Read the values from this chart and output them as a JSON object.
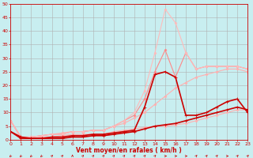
{
  "bg_color": "#c8eef0",
  "grid_color": "#b0b0b0",
  "xlabel": "Vent moyen/en rafales ( km/h )",
  "xlabel_color": "#cc0000",
  "xlabel_fontsize": 5.5,
  "tick_color": "#cc0000",
  "tick_fontsize": 4.5,
  "ylim": [
    0,
    50
  ],
  "xlim": [
    0,
    23
  ],
  "yticks": [
    0,
    5,
    10,
    15,
    20,
    25,
    30,
    35,
    40,
    45,
    50
  ],
  "xticks": [
    0,
    1,
    2,
    3,
    4,
    5,
    6,
    7,
    8,
    9,
    10,
    11,
    12,
    13,
    14,
    15,
    16,
    17,
    18,
    19,
    20,
    21,
    22,
    23
  ],
  "series": [
    {
      "x": [
        0,
        1,
        2,
        3,
        4,
        5,
        6,
        7,
        8,
        9,
        10,
        11,
        12,
        13,
        14,
        15,
        16,
        17,
        18,
        19,
        20,
        21,
        22,
        23
      ],
      "y": [
        7,
        0.5,
        0.5,
        1,
        1,
        1.5,
        2,
        2,
        2,
        2,
        3,
        3.5,
        4,
        4.5,
        5,
        5,
        5.5,
        6,
        7,
        8,
        9,
        10,
        11,
        11
      ],
      "color": "#ffb0b0",
      "lw": 0.8,
      "marker": "D",
      "ms": 1.5
    },
    {
      "x": [
        0,
        1,
        2,
        3,
        4,
        5,
        6,
        7,
        8,
        9,
        10,
        11,
        12,
        13,
        14,
        15,
        16,
        17,
        18,
        19,
        20,
        21,
        22,
        23
      ],
      "y": [
        7,
        1,
        1,
        1.5,
        2,
        2.5,
        3,
        3,
        3.5,
        3.5,
        5,
        6,
        8,
        10,
        13,
        16,
        19,
        21,
        23,
        24,
        25,
        26,
        26,
        25
      ],
      "color": "#ffb0b0",
      "lw": 0.8,
      "marker": "D",
      "ms": 1.5
    },
    {
      "x": [
        0,
        1,
        2,
        3,
        4,
        5,
        6,
        7,
        8,
        9,
        10,
        11,
        12,
        13,
        14,
        15,
        16,
        17,
        18,
        19,
        20,
        21,
        22,
        23
      ],
      "y": [
        7,
        1,
        1,
        1.5,
        2,
        2,
        3,
        3,
        3.5,
        3.5,
        5,
        7,
        9,
        15,
        25,
        33,
        23,
        32,
        26,
        27,
        27,
        27,
        27,
        26
      ],
      "color": "#ff8888",
      "lw": 0.8,
      "marker": "D",
      "ms": 1.5
    },
    {
      "x": [
        0,
        1,
        2,
        3,
        4,
        5,
        6,
        7,
        8,
        9,
        10,
        11,
        12,
        13,
        14,
        15,
        16,
        17,
        18,
        19,
        20,
        21,
        22,
        23
      ],
      "y": [
        7,
        1,
        1,
        1.5,
        2,
        2,
        3,
        3,
        3.5,
        3.5,
        5,
        7,
        10,
        18,
        32,
        48,
        43,
        32,
        26,
        27,
        27,
        27,
        27,
        26
      ],
      "color": "#ffbbbb",
      "lw": 0.8,
      "marker": "D",
      "ms": 1.5
    },
    {
      "x": [
        0,
        1,
        2,
        3,
        4,
        5,
        6,
        7,
        8,
        9,
        10,
        11,
        12,
        13,
        14,
        15,
        16,
        17,
        18,
        19,
        20,
        21,
        22,
        23
      ],
      "y": [
        3,
        1,
        0.5,
        0.5,
        1,
        1,
        1.5,
        1.5,
        2,
        2,
        2.5,
        3,
        3.5,
        12,
        24,
        25,
        23,
        9,
        9,
        10,
        12,
        14,
        15,
        10
      ],
      "color": "#cc0000",
      "lw": 1.2,
      "marker": "+",
      "ms": 2.5
    },
    {
      "x": [
        0,
        1,
        2,
        3,
        4,
        5,
        6,
        7,
        8,
        9,
        10,
        11,
        12,
        13,
        14,
        15,
        16,
        17,
        18,
        19,
        20,
        21,
        22,
        23
      ],
      "y": [
        3,
        0.5,
        0.5,
        0.5,
        0.5,
        0.5,
        1,
        1,
        1.5,
        1.5,
        2,
        2.5,
        3,
        4,
        5,
        5.5,
        6,
        7,
        8,
        9,
        10,
        11,
        12,
        11
      ],
      "color": "#cc0000",
      "lw": 1.2,
      "marker": "+",
      "ms": 2.5
    }
  ],
  "arrow_angles": [
    225,
    225,
    225,
    225,
    45,
    45,
    90,
    45,
    45,
    45,
    45,
    45,
    45,
    45,
    45,
    0,
    0,
    0,
    45,
    45,
    45,
    0,
    45,
    45
  ]
}
